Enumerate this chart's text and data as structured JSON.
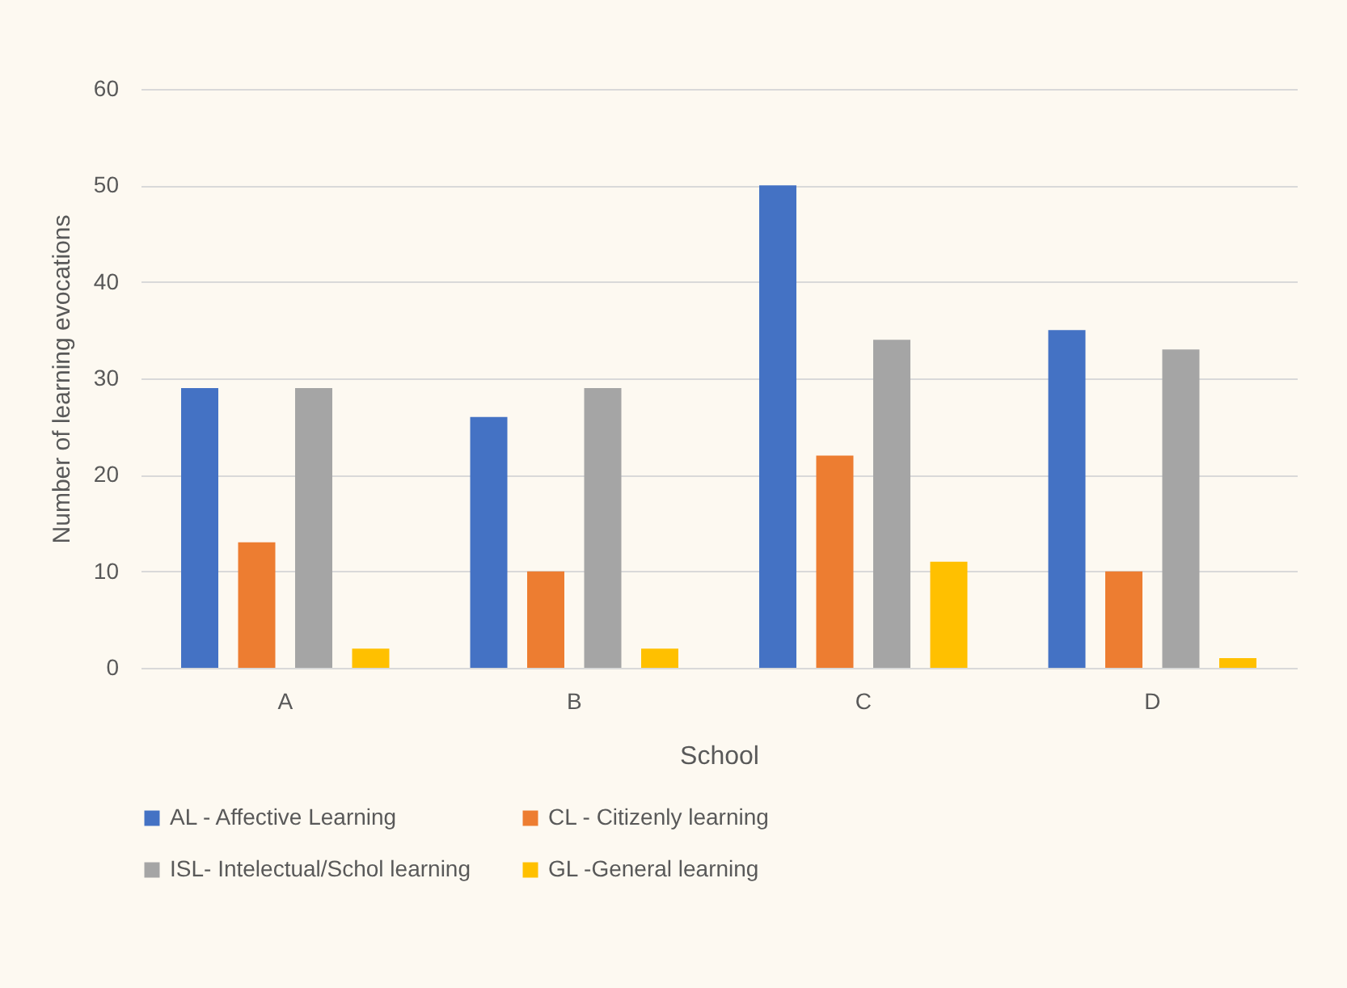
{
  "chart_data": {
    "type": "bar",
    "xlabel": "School",
    "ylabel": "Number of learning evocations",
    "categories": [
      "A",
      "B",
      "C",
      "D"
    ],
    "series": [
      {
        "name": "AL - Affective Learning",
        "color": "#4472c4",
        "values": [
          29,
          26,
          50,
          35
        ]
      },
      {
        "name": "CL - Citizenly learning",
        "color": "#ed7d31",
        "values": [
          13,
          10,
          22,
          10
        ]
      },
      {
        "name": "ISL- Intelectual/Schol learning",
        "color": "#a5a5a5",
        "values": [
          29,
          29,
          34,
          33
        ]
      },
      {
        "name": "GL -General learning",
        "color": "#ffc000",
        "values": [
          2,
          2,
          11,
          1
        ]
      }
    ],
    "ylim": [
      0,
      60
    ],
    "yticks": [
      0,
      10,
      20,
      30,
      40,
      50,
      60
    ],
    "grid": "y",
    "legend": "bottom"
  }
}
